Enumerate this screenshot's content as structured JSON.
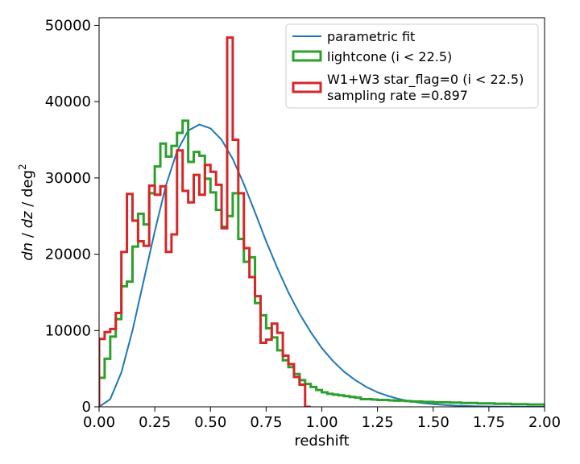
{
  "chart_data": {
    "type": "line",
    "xlabel": "redshift",
    "ylabel_parts": [
      "dn",
      " / ",
      "dz",
      " / ",
      "deg",
      "2"
    ],
    "xlim": [
      0,
      2
    ],
    "ylim": [
      0,
      51000
    ],
    "xticks": [
      0,
      0.25,
      0.5,
      0.75,
      1.0,
      1.25,
      1.5,
      1.75,
      2.0
    ],
    "xtick_labels": [
      "0.00",
      "0.25",
      "0.50",
      "0.75",
      "1.00",
      "1.25",
      "1.50",
      "1.75",
      "2.00"
    ],
    "yticks": [
      0,
      10000,
      20000,
      30000,
      40000,
      50000
    ],
    "ytick_labels": [
      "0",
      "10000",
      "20000",
      "30000",
      "40000",
      "50000"
    ],
    "legend_position": "top-right",
    "series": [
      {
        "name": "parametric fit",
        "style": "line",
        "color": "#1f77b4",
        "x": [
          0.0,
          0.05,
          0.1,
          0.15,
          0.2,
          0.25,
          0.3,
          0.35,
          0.4,
          0.45,
          0.5,
          0.55,
          0.6,
          0.65,
          0.7,
          0.75,
          0.8,
          0.85,
          0.9,
          0.95,
          1.0,
          1.05,
          1.1,
          1.15,
          1.2,
          1.25,
          1.3,
          1.35,
          1.4,
          1.45,
          1.5,
          1.55,
          1.6,
          1.7,
          1.8,
          1.9,
          2.0
        ],
        "y": [
          0,
          1000,
          4500,
          10000,
          16500,
          23000,
          29000,
          33500,
          36200,
          37000,
          36500,
          35000,
          32500,
          29200,
          25500,
          21700,
          18200,
          15000,
          12200,
          9800,
          7700,
          6000,
          4600,
          3500,
          2600,
          1900,
          1400,
          1000,
          700,
          500,
          350,
          240,
          160,
          70,
          30,
          12,
          5
        ]
      },
      {
        "name": "lightcone (i < 22.5)",
        "style": "step",
        "color": "#2ca02c",
        "bin_width": 0.025,
        "x_start": 0.0,
        "values": [
          3800,
          6300,
          9200,
          11500,
          15800,
          16400,
          21000,
          25300,
          23900,
          28000,
          31500,
          34500,
          32800,
          34200,
          35900,
          37500,
          32100,
          33400,
          32900,
          29900,
          28100,
          25800,
          23600,
          25000,
          28000,
          22000,
          19000,
          19600,
          13600,
          12000,
          10300,
          9100,
          7400,
          6100,
          5200,
          4300,
          3500,
          3000,
          2600,
          2200,
          1900,
          1700,
          1600,
          1500,
          1400,
          1300,
          1200,
          1000,
          1000,
          950,
          900,
          900,
          850,
          800,
          800,
          750,
          700,
          700,
          650,
          650,
          600,
          600,
          600,
          550,
          550,
          500,
          500,
          500,
          450,
          450,
          450,
          400,
          400,
          400,
          350,
          350,
          350,
          300,
          300,
          300
        ]
      },
      {
        "name_line1": "W1+W3 star_flag=0 (i < 22.5)",
        "name_line2": "sampling rate =0.897",
        "style": "step",
        "color": "#d62728",
        "bin_width": 0.025,
        "x_start": 0.0,
        "values": [
          8900,
          9800,
          10200,
          12300,
          20300,
          27900,
          24400,
          21700,
          21100,
          29000,
          27800,
          28900,
          20300,
          22600,
          33600,
          28300,
          26800,
          30400,
          27800,
          31700,
          30800,
          29100,
          23400,
          48400,
          35000,
          28000,
          20800,
          17000,
          14500,
          8400,
          8800,
          10900,
          9700,
          6700,
          5600,
          3900,
          2900,
          0
        ]
      }
    ]
  }
}
